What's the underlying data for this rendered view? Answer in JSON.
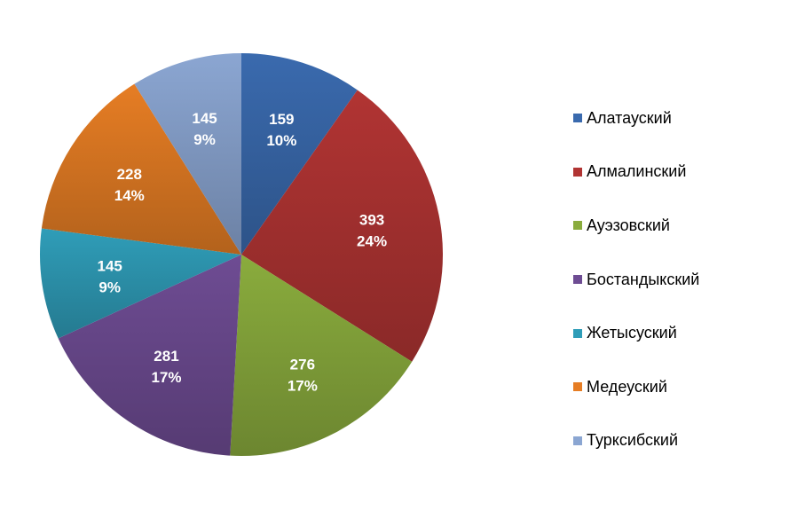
{
  "chart_data": {
    "type": "pie",
    "title": "",
    "start_angle": "12 o'clock, clockwise",
    "legend_position": "right",
    "slices": [
      {
        "name": "Алатауский",
        "value": 159,
        "percent_label": "10%",
        "color": "#3a6aae"
      },
      {
        "name": "Алмалинский",
        "value": 393,
        "percent_label": "24%",
        "color": "#b13433"
      },
      {
        "name": "Ауэзовский",
        "value": 276,
        "percent_label": "17%",
        "color": "#8aac3d"
      },
      {
        "name": "Бостандыкский",
        "value": 281,
        "percent_label": "17%",
        "color": "#6e4c93"
      },
      {
        "name": "Жетысуский",
        "value": 145,
        "percent_label": "9%",
        "color": "#2f9db8"
      },
      {
        "name": "Медеуский",
        "value": 228,
        "percent_label": "14%",
        "color": "#e67d24"
      },
      {
        "name": "Турксибский",
        "value": 145,
        "percent_label": "9%",
        "color": "#8ba6d2"
      }
    ]
  }
}
